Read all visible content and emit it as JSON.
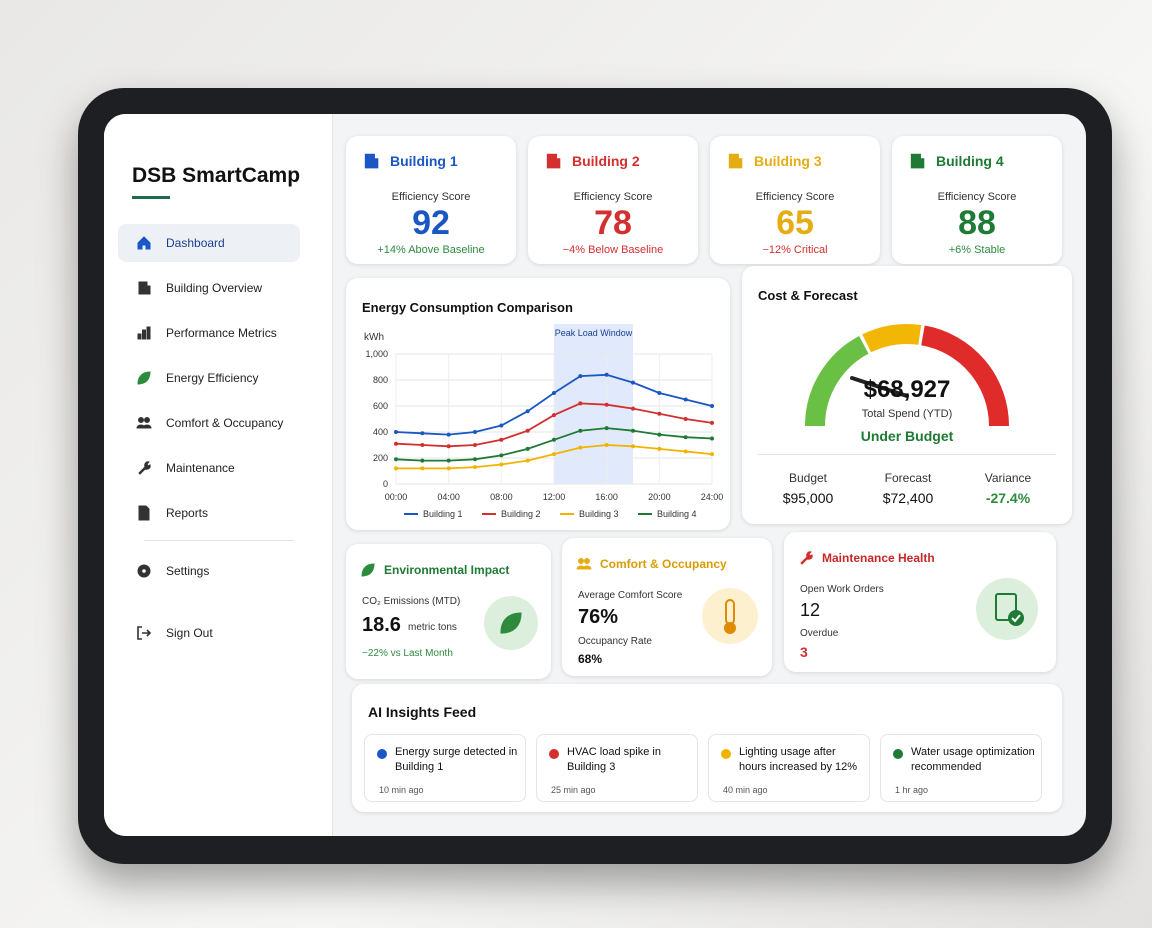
{
  "sidebar": {
    "brand": "DSB SmartCamp",
    "nav": [
      "Dashboard",
      "Building Overview",
      "Performance Metrics",
      "Energy Efficiency",
      "Comfort & Occupancy",
      "Maintenance",
      "Reports"
    ],
    "settings": [
      "Settings",
      "Sign Out"
    ]
  },
  "buildings": [
    {
      "name": "Building 1",
      "metric": "Efficiency Score",
      "score": 92,
      "note": "+14% Above Baseline",
      "color": "#1a56c4",
      "note_color": "#2e8b3e"
    },
    {
      "name": "Building 2",
      "metric": "Efficiency Score",
      "score": 78,
      "note": "−4% Below Baseline",
      "color": "#d32f2f",
      "note_color": "#d32f2f"
    },
    {
      "name": "Building 3",
      "metric": "Efficiency Score",
      "score": 65,
      "note": "−12% Critical",
      "color": "#e6ad12",
      "note_color": "#d32f2f"
    },
    {
      "name": "Building 4",
      "metric": "Efficiency Score",
      "score": 88,
      "note": "+6% Stable",
      "color": "#1e7a34",
      "note_color": "#2e8b3e"
    }
  ],
  "energy_chart": {
    "type": "line",
    "title": "Energy Consumption Comparison",
    "y_label": "kWh",
    "x": [
      0,
      2,
      4,
      6,
      8,
      10,
      12,
      14,
      16,
      18,
      20,
      22,
      24
    ],
    "xlim": [
      0,
      24
    ],
    "xticks": [
      {
        "value": 0,
        "label": "00:00"
      },
      {
        "value": 4,
        "label": "04:00"
      },
      {
        "value": 8,
        "label": "08:00"
      },
      {
        "value": 12,
        "label": "12:00"
      },
      {
        "value": 16,
        "label": "16:00"
      },
      {
        "value": 20,
        "label": "20:00"
      },
      {
        "value": 24,
        "label": "24:00"
      }
    ],
    "ylim": [
      0,
      1000
    ],
    "yticks": [
      0,
      200,
      400,
      600,
      800,
      {
        "value": 1000,
        "label": "1,000"
      }
    ],
    "grid": true,
    "peak_window": {
      "label": "Peak Load Window",
      "xrange": [
        12,
        18
      ]
    },
    "series": [
      {
        "name": "Building 1",
        "color": "#1a56c4",
        "values": [
          400,
          390,
          380,
          400,
          450,
          560,
          700,
          830,
          840,
          780,
          700,
          650,
          600
        ]
      },
      {
        "name": "Building 2",
        "color": "#d32f2f",
        "values": [
          310,
          300,
          290,
          300,
          340,
          410,
          530,
          620,
          610,
          580,
          540,
          500,
          470
        ]
      },
      {
        "name": "Building 3",
        "color": "#f0b400",
        "values": [
          120,
          120,
          120,
          130,
          150,
          180,
          230,
          280,
          300,
          290,
          270,
          250,
          230
        ]
      },
      {
        "name": "Building 4",
        "color": "#1e7a34",
        "values": [
          190,
          180,
          180,
          190,
          220,
          270,
          340,
          410,
          430,
          410,
          380,
          360,
          350
        ]
      }
    ]
  },
  "cost": {
    "title": "Cost & Forecast",
    "total": "$68,927",
    "total_label": "Total Spend (YTD)",
    "status": "Under Budget",
    "items": [
      {
        "label": "Budget",
        "value": "$95,000"
      },
      {
        "label": "Forecast",
        "value": "$72,400"
      },
      {
        "label": "Variance",
        "value": "-27.4%"
      }
    ]
  },
  "environmental": {
    "title": "Environmental Impact",
    "metric": "CO₂ Emissions (MTD)",
    "value": "18.6",
    "unit": "metric tons",
    "change": "−22% vs Last Month"
  },
  "comfort": {
    "title": "Comfort & Occupancy",
    "comfort_label": "Average Comfort Score",
    "comfort_value": "76%",
    "occupancy_label": "Occupancy Rate",
    "occupancy_value": "68%"
  },
  "maintenance": {
    "title": "Maintenance Health",
    "open_label": "Open Work Orders",
    "open_value": 12,
    "overdue_label": "Overdue",
    "overdue_value": 3
  },
  "insights": {
    "title": "AI Insights Feed",
    "items": [
      {
        "text": "Energy surge detected in Building 1",
        "time": "10 min ago",
        "color": "#1a56c4"
      },
      {
        "text": "HVAC load spike in Building 3",
        "time": "25 min ago",
        "color": "#d32f2f"
      },
      {
        "text": "Lighting usage after hours increased by 12%",
        "time": "40 min ago",
        "color": "#f0b400"
      },
      {
        "text": "Water usage optimization recommended",
        "time": "1 hr ago",
        "color": "#1e7a34"
      }
    ]
  }
}
